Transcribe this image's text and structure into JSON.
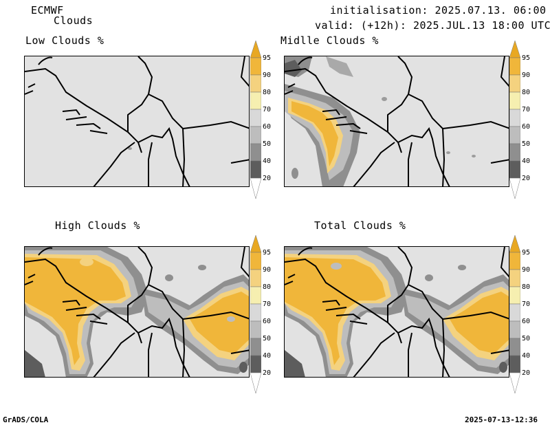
{
  "header": {
    "model": "ECMWF",
    "product": "Clouds",
    "init": "initialisation: 2025.07.13. 06:00 UTC",
    "valid": "valid: (+12h): 2025.JUL.13 18:00 UTC"
  },
  "panels": [
    {
      "title": "Low Clouds %"
    },
    {
      "title": "Midlle Clouds %"
    },
    {
      "title": "High Clouds %"
    },
    {
      "title": "Total Clouds %"
    }
  ],
  "colorbar": {
    "levels": [
      "95",
      "90",
      "80",
      "70",
      "60",
      "50",
      "40",
      "20"
    ],
    "colors": [
      "#e8a823",
      "#f0b63a",
      "#f4d27f",
      "#f6efb0",
      "#d9d9d9",
      "#bdbdbd",
      "#8f8f8f",
      "#5d5d5d",
      "#ffffff"
    ]
  },
  "footer": {
    "left": "GrADS/COLA",
    "right": "2025-07-13-12:36"
  }
}
